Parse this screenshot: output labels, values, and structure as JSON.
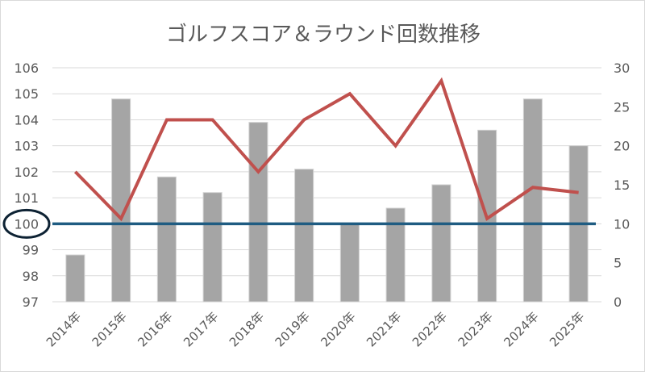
{
  "chart_data": {
    "type": "bar+line",
    "title": "ゴルフスコア＆ラウンド回数推移",
    "categories": [
      "2014年",
      "2015年",
      "2016年",
      "2017年",
      "2018年",
      "2019年",
      "2020年",
      "2021年",
      "2022年",
      "2023年",
      "2024年",
      "2025年"
    ],
    "series": [
      {
        "name": "ラウンド回数",
        "type": "bar",
        "axis": "right",
        "color": "#a5a5a5",
        "values": [
          6,
          26,
          16,
          14,
          23,
          17,
          10,
          12,
          15,
          22,
          26,
          20
        ]
      },
      {
        "name": "スコア",
        "type": "line",
        "axis": "left",
        "color": "#c0504d",
        "values": [
          102.0,
          100.2,
          104.0,
          104.0,
          102.0,
          104.0,
          105.0,
          103.0,
          105.5,
          100.2,
          101.4,
          101.2
        ]
      }
    ],
    "reference_line": {
      "value": 100,
      "axis": "left",
      "color": "#1f5c82"
    },
    "highlighted_tick": "100",
    "left_axis": {
      "ylim": [
        97,
        106
      ],
      "ticks": [
        "97",
        "98",
        "99",
        "100",
        "101",
        "102",
        "103",
        "104",
        "105",
        "106"
      ]
    },
    "right_axis": {
      "ylim": [
        0,
        30
      ],
      "ticks": [
        "0",
        "5",
        "10",
        "15",
        "20",
        "25",
        "30"
      ]
    },
    "grid": true,
    "legend": "none"
  }
}
